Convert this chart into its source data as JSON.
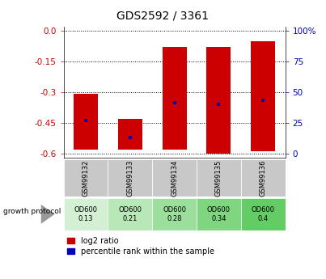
{
  "title": "GDS2592 / 3361",
  "samples": [
    "GSM99132",
    "GSM99133",
    "GSM99134",
    "GSM99135",
    "GSM99136"
  ],
  "log2_ratio_start": [
    0.0,
    0.0,
    0.0,
    0.0,
    0.0
  ],
  "log2_ratio_end": [
    -0.58,
    -0.58,
    -0.58,
    -0.6,
    -0.59
  ],
  "bar_tops": [
    -0.31,
    -0.43,
    -0.08,
    -0.08,
    -0.05
  ],
  "percentile_y": [
    -0.44,
    -0.52,
    -0.35,
    -0.36,
    -0.34
  ],
  "od600_labels": [
    "OD600\n0.13",
    "OD600\n0.21",
    "OD600\n0.28",
    "OD600\n0.34",
    "OD600\n0.4"
  ],
  "od600_colors": [
    "#d4f0d4",
    "#b8e8b8",
    "#9cdf9c",
    "#80d680",
    "#64cc64"
  ],
  "ylim": [
    -0.62,
    0.02
  ],
  "yticks_left": [
    0.0,
    -0.15,
    -0.3,
    -0.45,
    -0.6
  ],
  "yticks_right_vals": [
    100,
    75,
    50,
    25,
    0
  ],
  "yticks_right_pos": [
    0.0,
    -0.15,
    -0.3,
    -0.45,
    -0.6
  ],
  "bar_color": "#cc0000",
  "percentile_color": "#0000bb",
  "sample_bg": "#c8c8c8",
  "title_fontsize": 10,
  "tick_fontsize": 7.5,
  "legend_fontsize": 7
}
